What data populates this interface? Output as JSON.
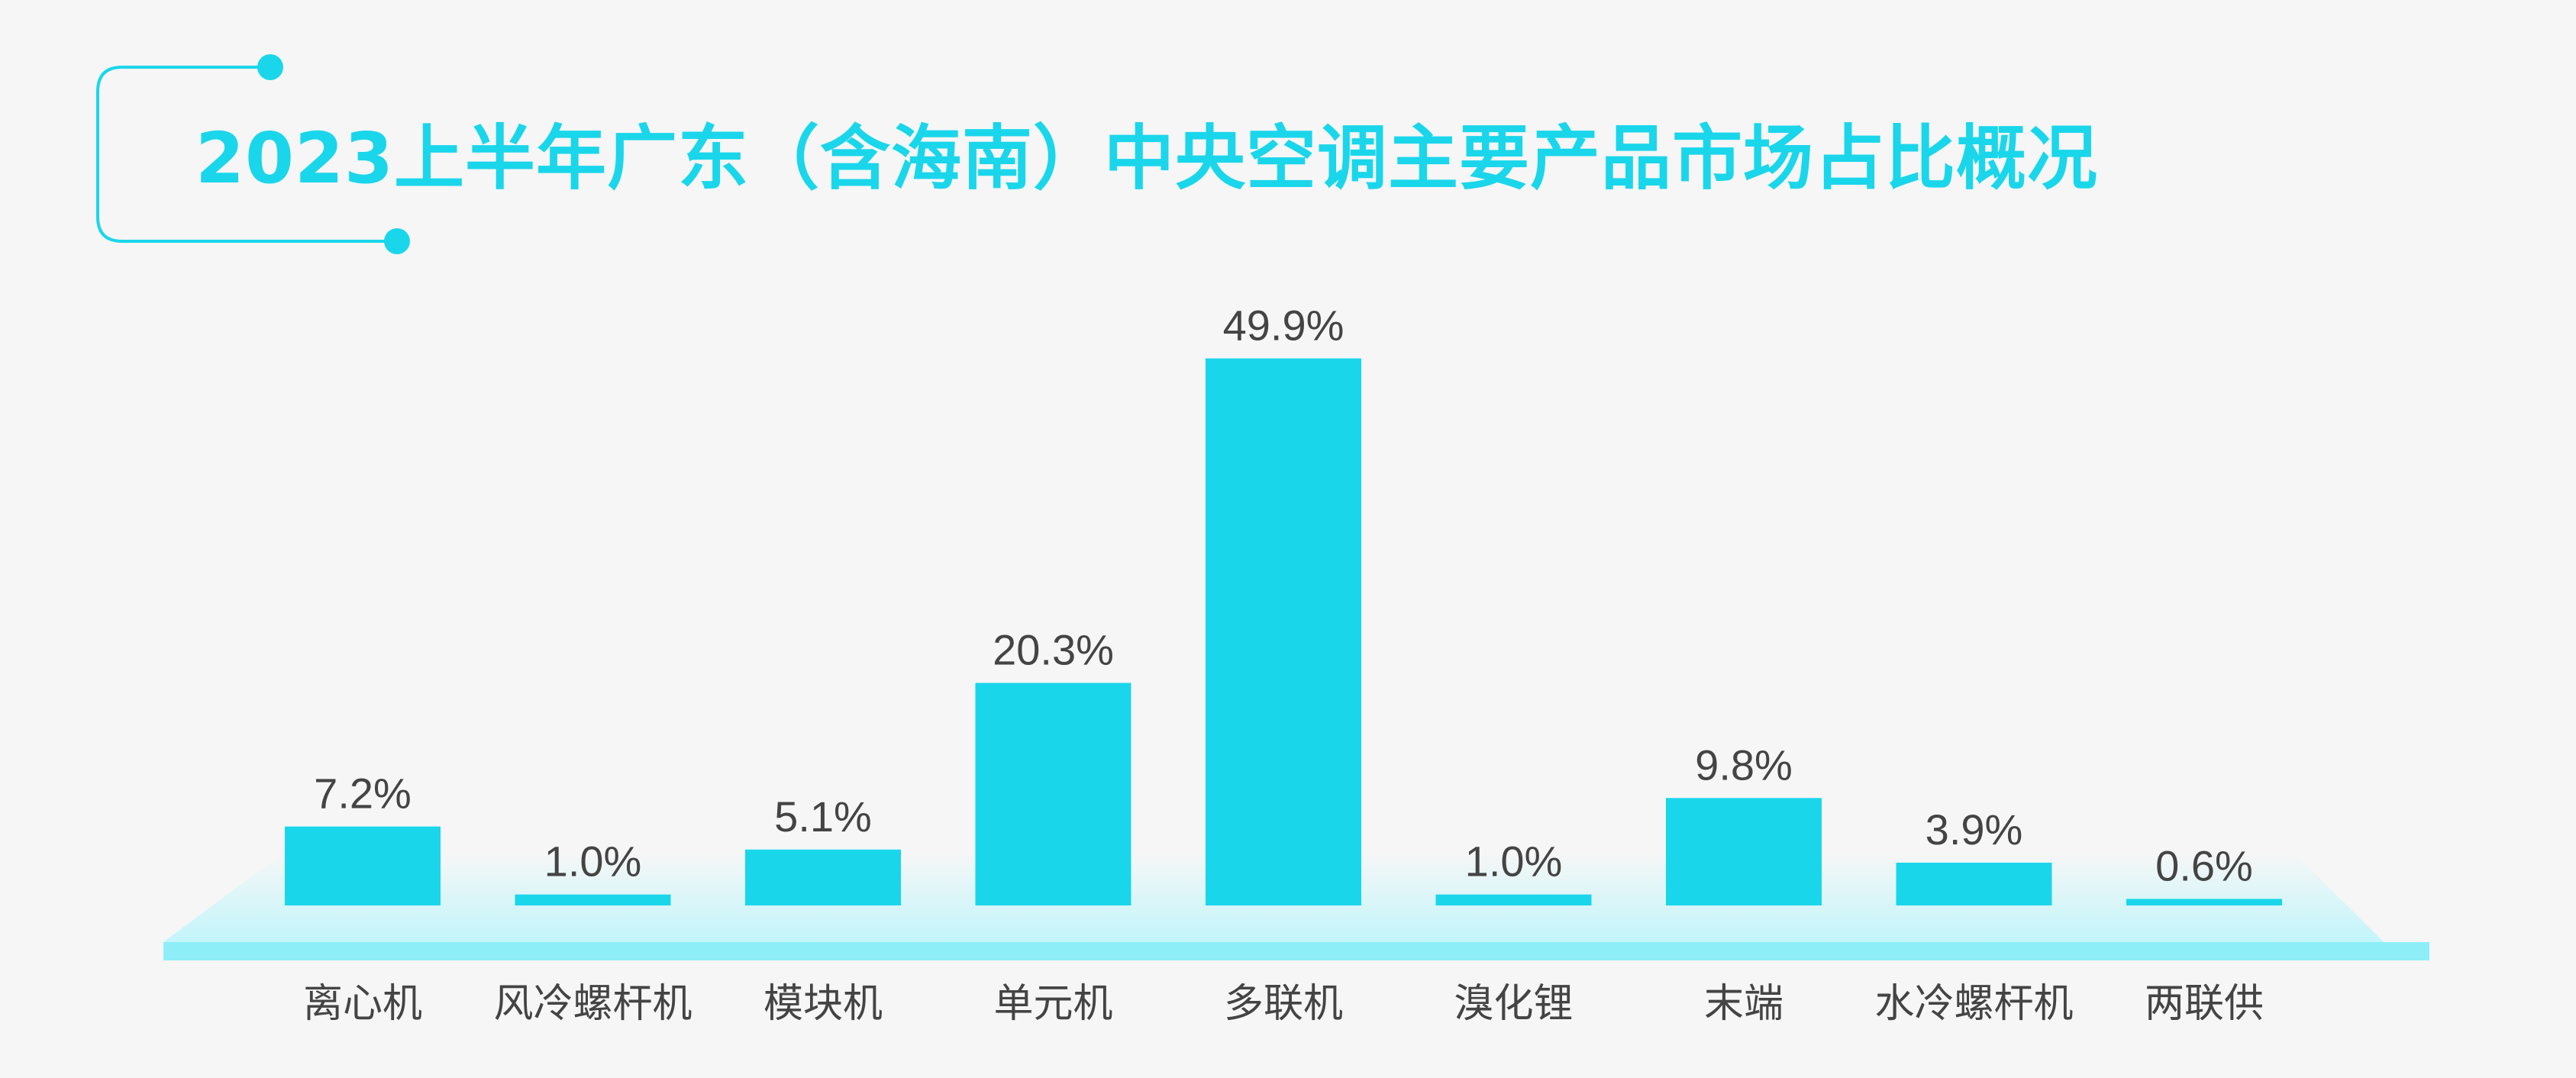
{
  "colors": {
    "background": "#f6f6f6",
    "accent": "#1ad6eb",
    "platform": "#8deef7",
    "platform_fade": "#bff5fb",
    "label_text": "#444444"
  },
  "chart_data": {
    "type": "bar",
    "title": "2023上半年广东（含海南）中央空调主要产品市场占比概况",
    "xlabel": "",
    "ylabel": "",
    "unit": "%",
    "categories": [
      "离心机",
      "风冷螺杆机",
      "模块机",
      "单元机",
      "多联机",
      "溴化锂",
      "末端",
      "水冷螺杆机",
      "两联供"
    ],
    "values": [
      7.2,
      1.0,
      5.1,
      20.3,
      49.9,
      1.0,
      9.8,
      3.9,
      0.6
    ],
    "value_labels": [
      "7.2%",
      "1.0%",
      "5.1%",
      "20.3%",
      "49.9%",
      "1.0%",
      "9.8%",
      "3.9%",
      "0.6%"
    ],
    "ylim": [
      0,
      50
    ],
    "grid": false,
    "legend": "none"
  }
}
